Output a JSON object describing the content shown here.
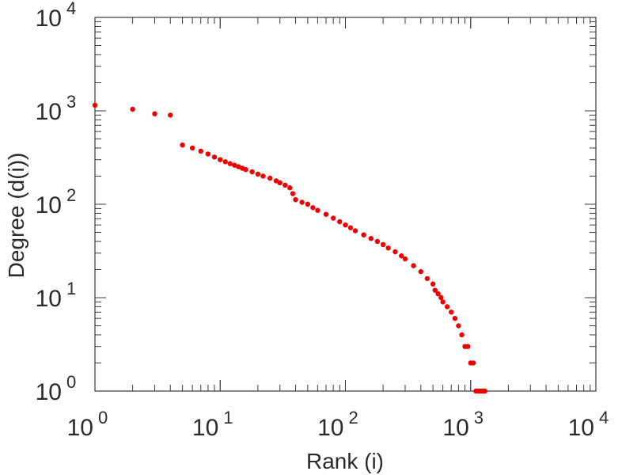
{
  "chart_data": {
    "type": "scatter",
    "scale": {
      "x": "log",
      "y": "log"
    },
    "xlabel": "Rank (i)",
    "ylabel": "Degree (d(i))",
    "xlim": [
      1,
      10000
    ],
    "ylim": [
      1,
      10000
    ],
    "grid": false,
    "x_ticks": [
      {
        "base": "10",
        "exp": "0"
      },
      {
        "base": "10",
        "exp": "1"
      },
      {
        "base": "10",
        "exp": "2"
      },
      {
        "base": "10",
        "exp": "3"
      },
      {
        "base": "10",
        "exp": "4"
      }
    ],
    "y_ticks": [
      {
        "base": "10",
        "exp": "0"
      },
      {
        "base": "10",
        "exp": "1"
      },
      {
        "base": "10",
        "exp": "2"
      },
      {
        "base": "10",
        "exp": "3"
      },
      {
        "base": "10",
        "exp": "4"
      }
    ],
    "marker_color": "#ee0000",
    "points": [
      [
        1,
        1150
      ],
      [
        2,
        1040
      ],
      [
        3,
        930
      ],
      [
        4,
        900
      ],
      [
        5,
        430
      ],
      [
        6,
        400
      ],
      [
        7,
        370
      ],
      [
        8,
        345
      ],
      [
        9,
        320
      ],
      [
        10,
        300
      ],
      [
        11,
        285
      ],
      [
        12,
        272
      ],
      [
        13,
        262
      ],
      [
        14,
        252
      ],
      [
        15,
        243
      ],
      [
        16,
        235
      ],
      [
        18,
        222
      ],
      [
        20,
        210
      ],
      [
        22,
        200
      ],
      [
        25,
        190
      ],
      [
        28,
        178
      ],
      [
        30,
        170
      ],
      [
        33,
        160
      ],
      [
        36,
        150
      ],
      [
        38,
        130
      ],
      [
        40,
        112
      ],
      [
        45,
        105
      ],
      [
        50,
        100
      ],
      [
        55,
        92
      ],
      [
        60,
        86
      ],
      [
        70,
        78
      ],
      [
        80,
        71
      ],
      [
        90,
        65
      ],
      [
        100,
        60
      ],
      [
        110,
        56
      ],
      [
        120,
        52
      ],
      [
        140,
        47
      ],
      [
        160,
        43
      ],
      [
        180,
        40
      ],
      [
        200,
        37
      ],
      [
        220,
        34
      ],
      [
        250,
        31
      ],
      [
        280,
        28
      ],
      [
        300,
        26
      ],
      [
        350,
        22
      ],
      [
        400,
        19
      ],
      [
        450,
        16
      ],
      [
        500,
        14
      ],
      [
        520,
        12
      ],
      [
        550,
        11
      ],
      [
        580,
        10
      ],
      [
        600,
        9
      ],
      [
        650,
        8
      ],
      [
        700,
        7
      ],
      [
        750,
        6
      ],
      [
        800,
        5
      ],
      [
        850,
        4
      ],
      [
        900,
        3
      ],
      [
        950,
        3
      ],
      [
        1000,
        2
      ],
      [
        1050,
        2
      ],
      [
        1100,
        1
      ],
      [
        1150,
        1
      ],
      [
        1200,
        1
      ],
      [
        1250,
        1
      ],
      [
        1300,
        1
      ]
    ]
  }
}
